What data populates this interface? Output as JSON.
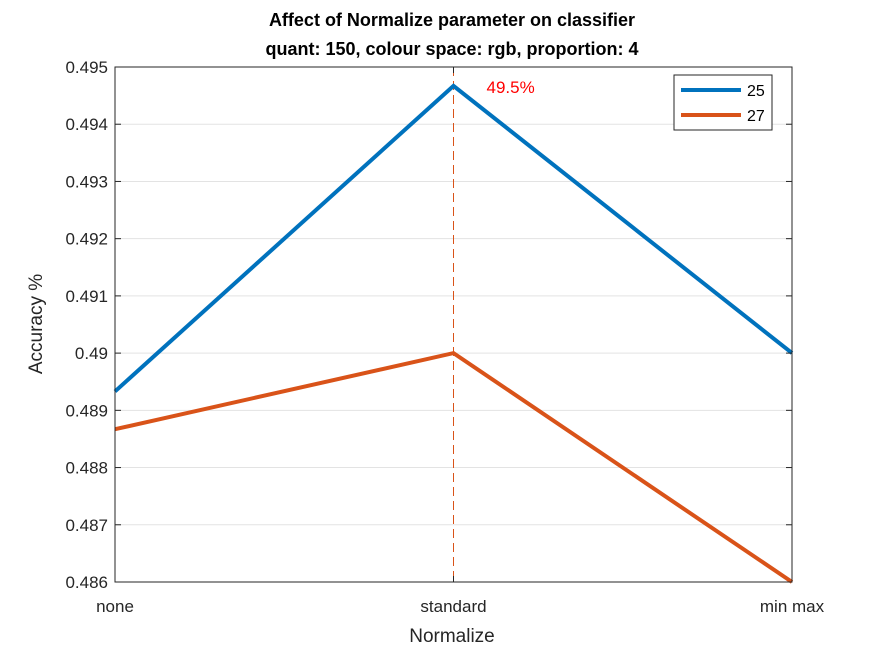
{
  "chart_data": {
    "type": "line",
    "title": "Affect of Normalize parameter on classifier",
    "subtitle": "quant: 150, colour space: rgb, proportion: 4",
    "xlabel": "Normalize",
    "ylabel": "Accuracy %",
    "categories": [
      "none",
      "standard",
      "min max"
    ],
    "ylim": [
      0.486,
      0.495
    ],
    "yticks": [
      0.486,
      0.487,
      0.488,
      0.489,
      0.49,
      0.491,
      0.492,
      0.493,
      0.494,
      0.495
    ],
    "ytick_labels": [
      "0.486",
      "0.487",
      "0.488",
      "0.489",
      "0.49",
      "0.491",
      "0.492",
      "0.493",
      "0.494",
      "0.495"
    ],
    "series": [
      {
        "name": "25",
        "color": "#0072BD",
        "values": [
          0.48933,
          0.49467,
          0.49
        ]
      },
      {
        "name": "27",
        "color": "#D95319",
        "values": [
          0.48867,
          0.49,
          0.486
        ]
      }
    ],
    "annotation": {
      "text": "49.5%",
      "color": "#FF0000",
      "category": "standard"
    },
    "marker_line": {
      "category": "standard",
      "color": "#D95319",
      "style": "dashed"
    },
    "grid": true,
    "legend_position": "top-right"
  }
}
